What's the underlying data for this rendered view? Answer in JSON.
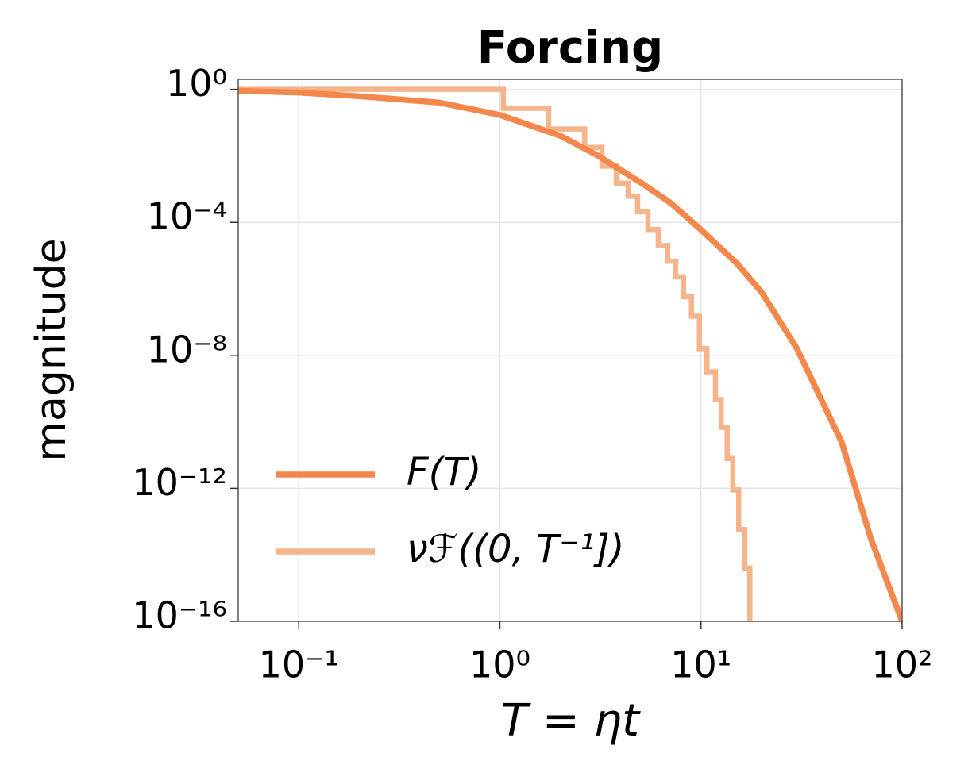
{
  "chart_data": {
    "type": "line",
    "title": "Forcing",
    "xlabel": "T = ηt",
    "ylabel": "magnitude",
    "xscale": "log",
    "yscale": "log",
    "xlim": [
      0.05,
      100
    ],
    "ylim": [
      1e-16,
      2
    ],
    "xticks": [
      {
        "value": 0.1,
        "label": "10⁻¹"
      },
      {
        "value": 1,
        "label": "10⁰"
      },
      {
        "value": 10,
        "label": "10¹"
      },
      {
        "value": 100,
        "label": "10²"
      }
    ],
    "yticks": [
      {
        "value": 1,
        "label": "10⁰"
      },
      {
        "value": 0.0001,
        "label": "10⁻⁴"
      },
      {
        "value": 1e-08,
        "label": "10⁻⁸"
      },
      {
        "value": 1e-12,
        "label": "10⁻¹²"
      },
      {
        "value": 1e-16,
        "label": "10⁻¹⁶"
      }
    ],
    "grid": true,
    "legend": "lower left",
    "series": [
      {
        "name": "F(T)",
        "color": "#f4874b",
        "drawstyle": "default",
        "x": [
          0.05,
          0.1,
          0.2,
          0.5,
          1,
          2,
          3,
          5,
          7,
          10,
          15,
          20,
          30,
          50,
          70,
          100
        ],
        "values": [
          0.9,
          0.8,
          0.62,
          0.4,
          0.17,
          0.04,
          0.011,
          0.0016,
          0.0004,
          6e-05,
          6e-06,
          8e-07,
          1.6e-08,
          2.5e-11,
          3e-14,
          1e-16
        ]
      },
      {
        "name": "νℱ((0, T⁻¹])",
        "color": "#f5b48a",
        "drawstyle": "steps-post",
        "x": [
          0.05,
          1.04,
          1.75,
          2.64,
          3.22,
          3.79,
          4.34,
          4.84,
          5.45,
          6.13,
          6.83,
          7.48,
          8.19,
          8.97,
          9.82,
          10.7,
          11.8,
          12.6,
          13.5,
          14.4,
          15.4,
          16.5,
          17.5
        ],
        "values": [
          1,
          0.27,
          0.064,
          0.018,
          0.0049,
          0.0015,
          0.00061,
          0.00021,
          6.1e-05,
          2e-05,
          6.8e-06,
          2.3e-06,
          5.8e-07,
          1.5e-07,
          1.6e-08,
          3.2e-09,
          4.7e-10,
          6.8e-11,
          7.9e-12,
          9e-13,
          5.8e-14,
          4e-15,
          1e-16
        ]
      }
    ]
  }
}
